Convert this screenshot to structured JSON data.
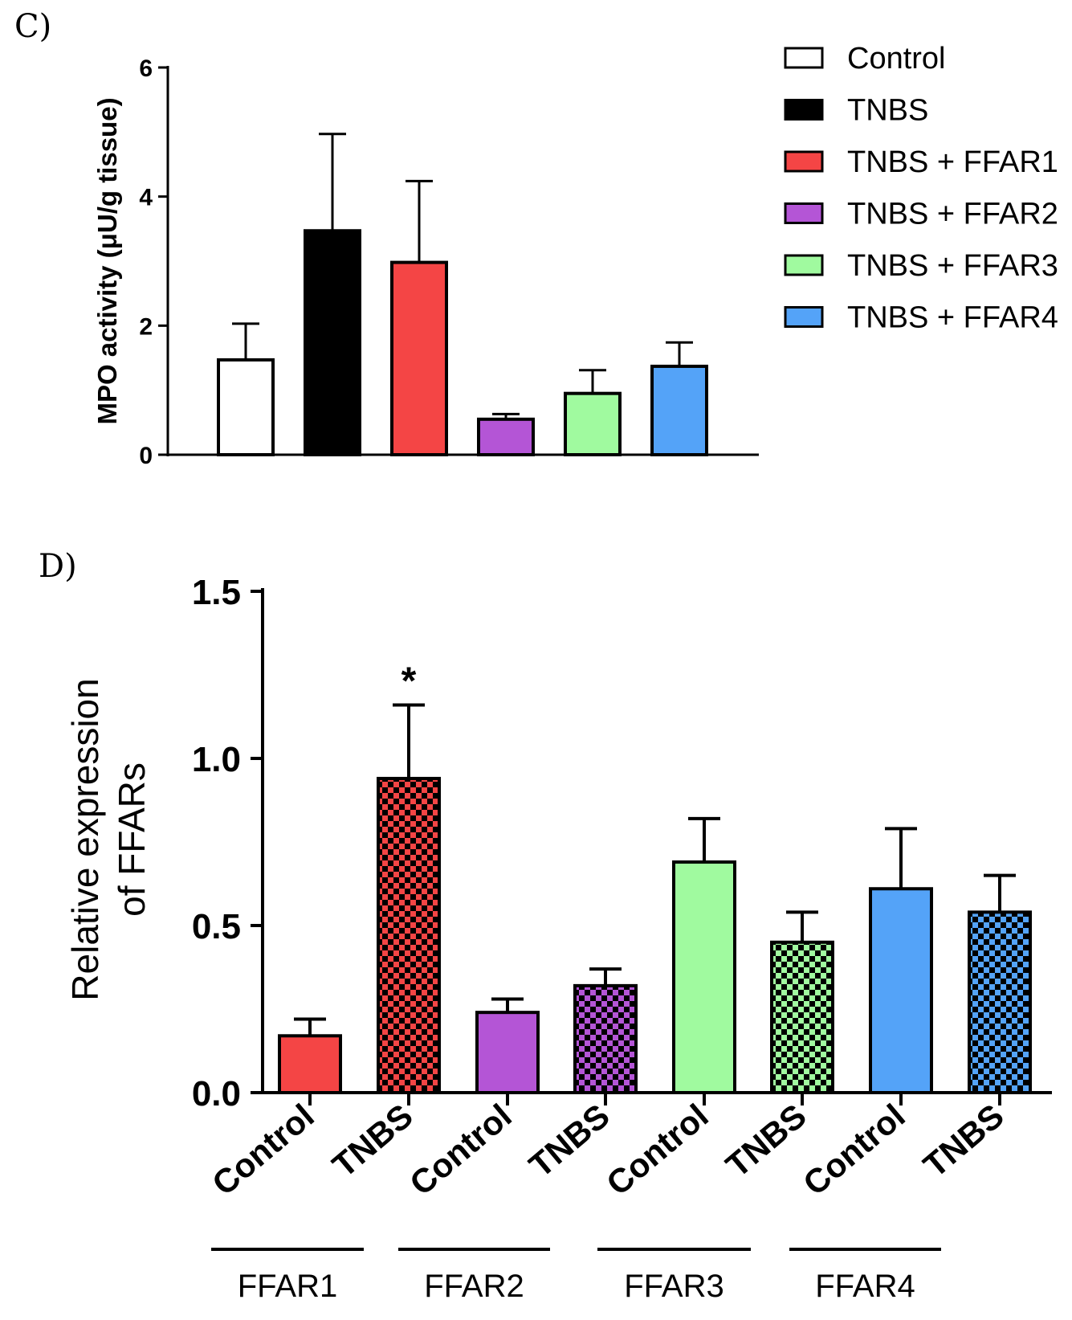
{
  "colors": {
    "control": "#ffffff",
    "tnbs": "#000000",
    "ffar1": "#f44545",
    "ffar2": "#b455d6",
    "ffar3": "#a0fa9f",
    "ffar4": "#54a3f8"
  },
  "chart_data": [
    {
      "panel_label": "C)",
      "type": "bar",
      "ylabel": "MPO activity (μU/g tissue)",
      "xlabel": "",
      "ylim": [
        0,
        6
      ],
      "yticks": [
        "0",
        "2",
        "4",
        "6"
      ],
      "categories": [
        "Control",
        "TNBS",
        "TNBS + FFAR1",
        "TNBS + FFAR2",
        "TNBS + FFAR3",
        "TNBS + FFAR4"
      ],
      "values": [
        1.47,
        3.47,
        2.98,
        0.55,
        0.95,
        1.37
      ],
      "errors": [
        0.56,
        1.5,
        1.26,
        0.08,
        0.36,
        0.37
      ],
      "color_keys": [
        "control",
        "tnbs",
        "ffar1",
        "ffar2",
        "ffar3",
        "ffar4"
      ],
      "legend": [
        "Control",
        "TNBS",
        "TNBS + FFAR1",
        "TNBS + FFAR2",
        "TNBS + FFAR3",
        "TNBS + FFAR4"
      ],
      "legend_position": "right"
    },
    {
      "panel_label": "D)",
      "type": "bar",
      "ylabel_line1": "Relative expression",
      "ylabel_line2": "of FFARs",
      "xlabel": "",
      "ylim": [
        0,
        1.5
      ],
      "yticks": [
        "0.0",
        "0.5",
        "1.0",
        "1.5"
      ],
      "categories": [
        "Control",
        "TNBS",
        "Control",
        "TNBS",
        "Control",
        "TNBS",
        "Control",
        "TNBS"
      ],
      "values": [
        0.17,
        0.94,
        0.24,
        0.32,
        0.69,
        0.45,
        0.61,
        0.54
      ],
      "errors": [
        0.05,
        0.22,
        0.04,
        0.05,
        0.13,
        0.09,
        0.18,
        0.11
      ],
      "color_keys": [
        "ffar1",
        "ffar1",
        "ffar2",
        "ffar2",
        "ffar3",
        "ffar3",
        "ffar4",
        "ffar4"
      ],
      "patterned": [
        false,
        true,
        false,
        true,
        false,
        true,
        false,
        true
      ],
      "groups": [
        "FFAR1",
        "FFAR2",
        "FFAR3",
        "FFAR4"
      ],
      "annotations": [
        {
          "bar_index": 1,
          "text": "*"
        }
      ]
    }
  ]
}
